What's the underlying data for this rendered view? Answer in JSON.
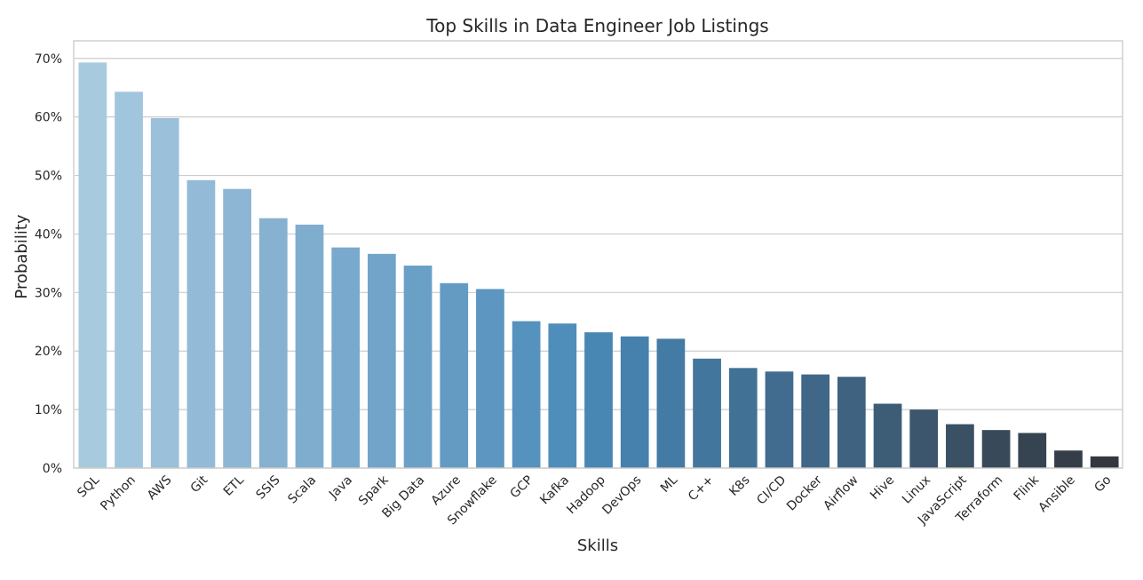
{
  "chart_data": {
    "type": "bar",
    "title": "Top Skills in Data Engineer Job Listings",
    "xlabel": "Skills",
    "ylabel": "Probability",
    "ylim": [
      0,
      0.73
    ],
    "y_ticks": [
      "0%",
      "10%",
      "20%",
      "30%",
      "40%",
      "50%",
      "60%",
      "70%"
    ],
    "y_tick_values": [
      0,
      0.1,
      0.2,
      0.3,
      0.4,
      0.5,
      0.6,
      0.7
    ],
    "grid": true,
    "categories": [
      "SQL",
      "Python",
      "AWS",
      "Git",
      "ETL",
      "SSIS",
      "Scala",
      "Java",
      "Spark",
      "Big Data",
      "Azure",
      "Snowflake",
      "GCP",
      "Kafka",
      "Hadoop",
      "DevOps",
      "ML",
      "C++",
      "K8s",
      "CI/CD",
      "Docker",
      "Airflow",
      "Hive",
      "Linux",
      "JavaScript",
      "Terraform",
      "Flink",
      "Ansible",
      "Go"
    ],
    "values": [
      0.693,
      0.643,
      0.598,
      0.492,
      0.477,
      0.427,
      0.416,
      0.377,
      0.366,
      0.346,
      0.316,
      0.306,
      0.251,
      0.247,
      0.232,
      0.225,
      0.221,
      0.187,
      0.171,
      0.165,
      0.16,
      0.156,
      0.11,
      0.1,
      0.075,
      0.065,
      0.06,
      0.03,
      0.02
    ],
    "colors": [
      "#a8cadf",
      "#a1c5dd",
      "#9ac0da",
      "#93bad7",
      "#8db6d4",
      "#86b1d1",
      "#7fadce",
      "#79a9cc",
      "#72a4c9",
      "#6ba0c6",
      "#649bc3",
      "#5d97c1",
      "#5692be",
      "#4f8dbb",
      "#4886b4",
      "#4681ad",
      "#447ba5",
      "#43769d",
      "#427196",
      "#416c8f",
      "#406788",
      "#3e6280",
      "#3d5c76",
      "#3b566d",
      "#3a5063",
      "#384a5a",
      "#364451",
      "#353e48",
      "#33383e"
    ]
  }
}
